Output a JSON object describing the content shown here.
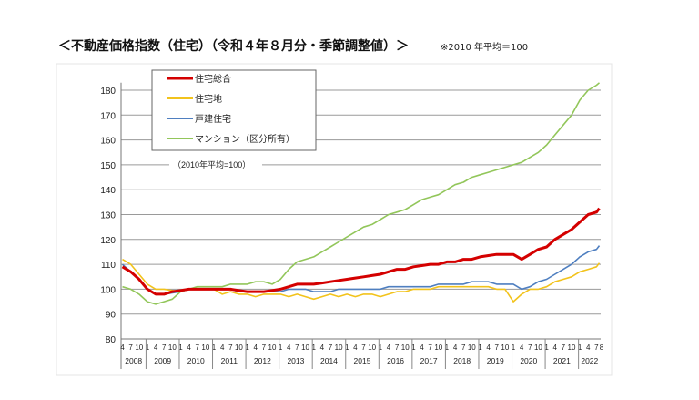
{
  "title": "＜不動産価格指数（住宅）（令和４年８月分・季節調整値）＞",
  "note": "※2010 年平均＝100",
  "chart_data": {
    "type": "line",
    "annotation": "（2010年平均=100）",
    "ylim": [
      80,
      185
    ],
    "yticks": [
      80,
      90,
      100,
      110,
      120,
      130,
      140,
      150,
      160,
      170,
      180
    ],
    "grid": true,
    "legend_placement": "top-left",
    "month_tick_labels": [
      "1",
      "4",
      "7",
      "10"
    ],
    "first_month_labels": [
      "4",
      "7",
      "10"
    ],
    "last_month_labels": [
      "1",
      "4",
      "7",
      "8"
    ],
    "years": [
      "2008",
      "2009",
      "2010",
      "2011",
      "2012",
      "2013",
      "2014",
      "2015",
      "2016",
      "2017",
      "2018",
      "2019",
      "2020",
      "2021",
      "2022"
    ],
    "x": [
      "2008-04",
      "2008-07",
      "2008-10",
      "2009-01",
      "2009-04",
      "2009-07",
      "2009-10",
      "2010-01",
      "2010-04",
      "2010-07",
      "2010-10",
      "2011-01",
      "2011-04",
      "2011-07",
      "2011-10",
      "2012-01",
      "2012-04",
      "2012-07",
      "2012-10",
      "2013-01",
      "2013-04",
      "2013-07",
      "2013-10",
      "2014-01",
      "2014-04",
      "2014-07",
      "2014-10",
      "2015-01",
      "2015-04",
      "2015-07",
      "2015-10",
      "2016-01",
      "2016-04",
      "2016-07",
      "2016-10",
      "2017-01",
      "2017-04",
      "2017-07",
      "2017-10",
      "2018-01",
      "2018-04",
      "2018-07",
      "2018-10",
      "2019-01",
      "2019-04",
      "2019-07",
      "2019-10",
      "2020-01",
      "2020-04",
      "2020-07",
      "2020-10",
      "2021-01",
      "2021-04",
      "2021-07",
      "2021-10",
      "2022-01",
      "2022-04",
      "2022-07",
      "2022-08"
    ],
    "series": [
      {
        "name": "住宅総合",
        "color": "#d40000",
        "values": [
          109,
          107,
          104,
          100,
          98,
          98,
          99,
          99.5,
          100,
          100,
          100,
          100,
          100,
          100,
          99.5,
          99,
          99,
          99,
          99.5,
          100,
          101,
          102,
          102,
          102,
          102.5,
          103,
          103.5,
          104,
          104.5,
          105,
          105.5,
          106,
          107,
          108,
          108,
          109,
          109.5,
          110,
          110,
          111,
          111,
          112,
          112,
          113,
          113.5,
          114,
          114,
          114,
          112,
          114,
          116,
          117,
          120,
          122,
          124,
          127,
          130,
          131,
          132.5
        ]
      },
      {
        "name": "住宅地",
        "color": "#f2c31c",
        "values": [
          112,
          110,
          106,
          102,
          100,
          100,
          99.5,
          99,
          100,
          100,
          100,
          100,
          98,
          99,
          98,
          98,
          97,
          98,
          98,
          98,
          97,
          98,
          97,
          96,
          97,
          98,
          97,
          98,
          97,
          98,
          98,
          97,
          98,
          99,
          99,
          100,
          100,
          100,
          101,
          101,
          101,
          101,
          101,
          101,
          101,
          100,
          100,
          95,
          98,
          100,
          100,
          101,
          103,
          104,
          105,
          107,
          108,
          109,
          110.5
        ]
      },
      {
        "name": "戸建住宅",
        "color": "#4f7fc0",
        "values": [
          110,
          107,
          104,
          100,
          98,
          98,
          98.5,
          99,
          100,
          100,
          100,
          100,
          100,
          100,
          99,
          99,
          99,
          99,
          99,
          99,
          100,
          100,
          100,
          99,
          99,
          99,
          100,
          100,
          100,
          100,
          100,
          100,
          101,
          101,
          101,
          101,
          101,
          101,
          102,
          102,
          102,
          102,
          103,
          103,
          103,
          102,
          102,
          102,
          100,
          101,
          103,
          104,
          106,
          108,
          110,
          113,
          115,
          116,
          117.5
        ]
      },
      {
        "name": "マンション（区分所有）",
        "color": "#92c65a",
        "values": [
          101,
          100,
          98,
          95,
          94,
          95,
          96,
          99,
          100,
          101,
          101,
          101,
          101,
          102,
          102,
          102,
          103,
          103,
          102,
          104,
          108,
          111,
          112,
          113,
          115,
          117,
          119,
          121,
          123,
          125,
          126,
          128,
          130,
          131,
          132,
          134,
          136,
          137,
          138,
          140,
          142,
          143,
          145,
          146,
          147,
          148,
          149,
          150,
          151,
          153,
          155,
          158,
          162,
          166,
          170,
          176,
          180,
          182,
          183
        ]
      }
    ]
  }
}
